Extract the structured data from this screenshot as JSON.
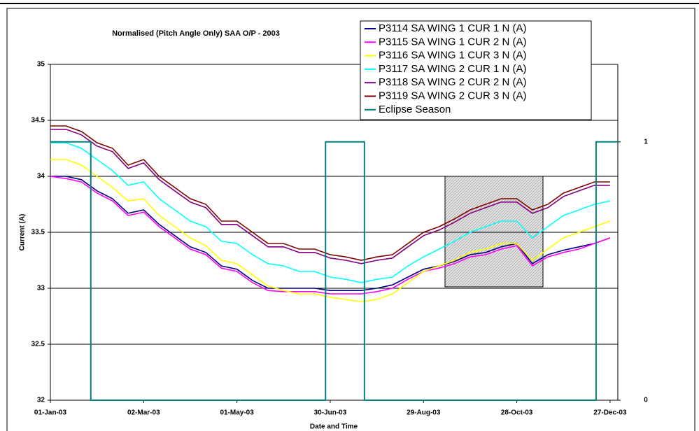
{
  "chart_data": {
    "type": "line",
    "title": "Normalised (Pitch Angle Only) SAA O/P - 2003",
    "x_label": "Date and Time",
    "y_label": "Current (A)",
    "xlim": [
      0,
      365
    ],
    "xticks": [
      {
        "value": 0,
        "label": "01-Jan-03"
      },
      {
        "value": 60,
        "label": "02-Mar-03"
      },
      {
        "value": 120,
        "label": "01-May-03"
      },
      {
        "value": 180,
        "label": "30-Jun-03"
      },
      {
        "value": 240,
        "label": "29-Aug-03"
      },
      {
        "value": 300,
        "label": "28-Oct-03"
      },
      {
        "value": 360,
        "label": "27-Dec-03"
      }
    ],
    "ylim": [
      32,
      35
    ],
    "yticks": [
      32,
      32.5,
      33,
      33.5,
      34,
      34.5,
      35
    ],
    "y2lim": [
      0,
      1.3
    ],
    "y2ticks": [
      0,
      1
    ],
    "grid": true,
    "legend": "top-right",
    "x": [
      0,
      10,
      20,
      30,
      40,
      50,
      60,
      70,
      80,
      90,
      100,
      110,
      120,
      130,
      140,
      150,
      160,
      170,
      180,
      190,
      200,
      210,
      220,
      230,
      240,
      250,
      260,
      270,
      280,
      290,
      300,
      310,
      320,
      330,
      340,
      350,
      360
    ],
    "series": [
      {
        "name": "P3114 SA WING 1 CUR 1 N (A)",
        "color": "#000080",
        "values": [
          34.0,
          34.0,
          33.97,
          33.87,
          33.8,
          33.67,
          33.7,
          33.57,
          33.47,
          33.37,
          33.32,
          33.2,
          33.17,
          33.07,
          33.0,
          33.0,
          33.0,
          33.0,
          32.98,
          32.98,
          32.98,
          33.0,
          33.03,
          33.1,
          33.17,
          33.2,
          33.24,
          33.3,
          33.32,
          33.37,
          33.4,
          33.22,
          33.3,
          33.34,
          33.37,
          33.4,
          33.45
        ]
      },
      {
        "name": "P3115 SA WING 1 CUR 2 N (A)",
        "color": "#ff00ff",
        "values": [
          34.0,
          33.98,
          33.95,
          33.85,
          33.78,
          33.65,
          33.68,
          33.55,
          33.45,
          33.35,
          33.3,
          33.18,
          33.15,
          33.05,
          32.98,
          32.97,
          32.97,
          32.97,
          32.95,
          32.95,
          32.95,
          32.97,
          33.0,
          33.08,
          33.15,
          33.18,
          33.22,
          33.28,
          33.3,
          33.35,
          33.38,
          33.2,
          33.28,
          33.32,
          33.35,
          33.4,
          33.45
        ]
      },
      {
        "name": "P3116 SA WING 1 CUR 3 N (A)",
        "color": "#ffff00",
        "values": [
          34.15,
          34.15,
          34.1,
          34.0,
          33.9,
          33.78,
          33.8,
          33.65,
          33.55,
          33.45,
          33.38,
          33.25,
          33.22,
          33.12,
          33.02,
          32.98,
          32.95,
          32.95,
          32.92,
          32.9,
          32.88,
          32.9,
          32.95,
          33.05,
          33.15,
          33.2,
          33.25,
          33.32,
          33.35,
          33.4,
          33.4,
          33.25,
          33.35,
          33.45,
          33.5,
          33.55,
          33.6
        ]
      },
      {
        "name": "P3117 SA WING 2 CUR 1 N (A)",
        "color": "#00ffff",
        "values": [
          34.3,
          34.3,
          34.25,
          34.15,
          34.05,
          33.92,
          33.95,
          33.8,
          33.7,
          33.6,
          33.55,
          33.42,
          33.4,
          33.3,
          33.22,
          33.2,
          33.15,
          33.15,
          33.1,
          33.08,
          33.05,
          33.08,
          33.1,
          33.2,
          33.28,
          33.35,
          33.42,
          33.5,
          33.55,
          33.6,
          33.6,
          33.45,
          33.55,
          33.65,
          33.7,
          33.75,
          33.78
        ]
      },
      {
        "name": "P3118 SA WING 2 CUR 2 N (A)",
        "color": "#800080",
        "values": [
          34.42,
          34.42,
          34.37,
          34.27,
          34.22,
          34.07,
          34.12,
          33.97,
          33.87,
          33.77,
          33.72,
          33.57,
          33.57,
          33.47,
          33.37,
          33.37,
          33.32,
          33.32,
          33.27,
          33.25,
          33.22,
          33.25,
          33.27,
          33.37,
          33.47,
          33.52,
          33.59,
          33.67,
          33.72,
          33.77,
          33.77,
          33.67,
          33.72,
          33.82,
          33.87,
          33.92,
          33.92
        ]
      },
      {
        "name": "P3119 SA WING 2 CUR 3 N (A)",
        "color": "#800000",
        "values": [
          34.45,
          34.45,
          34.4,
          34.3,
          34.25,
          34.1,
          34.15,
          34.0,
          33.9,
          33.8,
          33.75,
          33.6,
          33.6,
          33.5,
          33.4,
          33.4,
          33.35,
          33.35,
          33.3,
          33.28,
          33.25,
          33.28,
          33.3,
          33.4,
          33.5,
          33.55,
          33.62,
          33.7,
          33.75,
          33.8,
          33.8,
          33.7,
          33.75,
          33.85,
          33.9,
          33.95,
          33.95
        ]
      },
      {
        "name": "Eclipse Season",
        "color": "#008080",
        "axis": "y2",
        "x": [
          0,
          26,
          26,
          177,
          177,
          202,
          202,
          351,
          351,
          365
        ],
        "values": [
          1,
          1,
          0,
          0,
          1,
          1,
          0,
          0,
          1,
          1
        ]
      }
    ]
  }
}
